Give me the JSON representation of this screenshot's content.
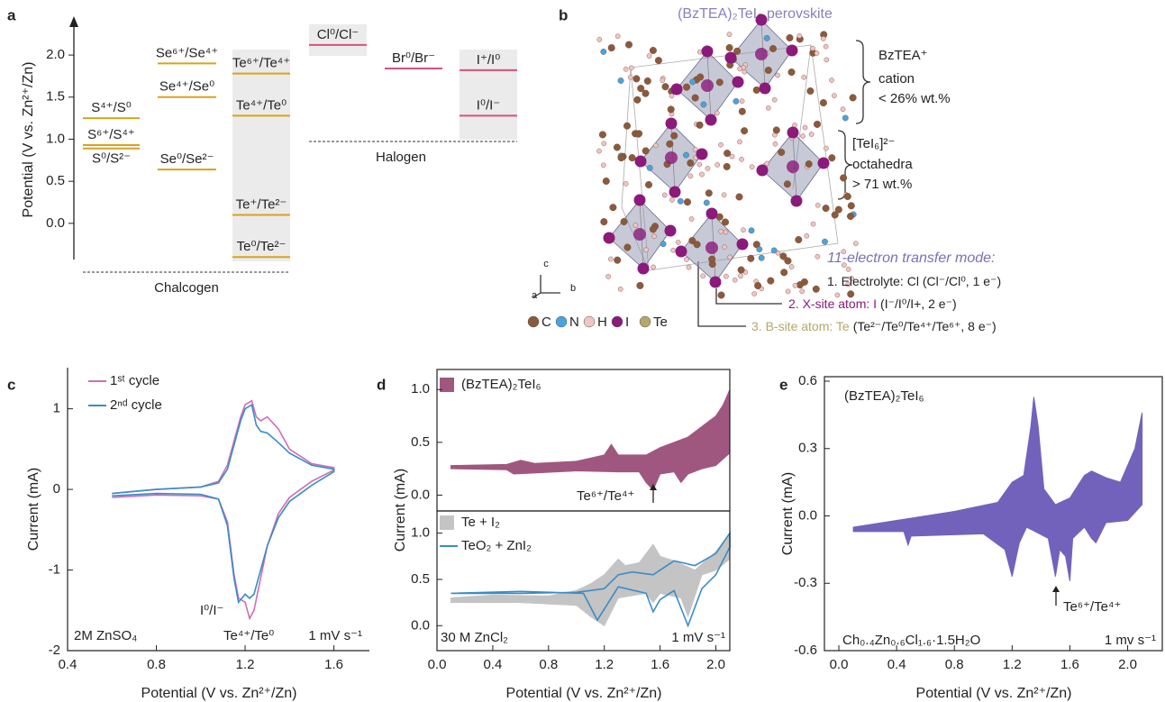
{
  "chart_data": [
    {
      "type": "levels",
      "panel_label": "a",
      "ylabel": "Potential (V vs. Zn²⁺/Zn)",
      "ylim": [
        -0.43,
        2.44
      ],
      "yticks": [
        {
          "value": 0,
          "label": "0.0"
        },
        0.5,
        {
          "value": 1,
          "label": "1.0"
        },
        1.5,
        {
          "value": 2,
          "label": "2.0"
        }
      ],
      "groups": [
        {
          "name": "Chalcogen",
          "color": "#d9a21b",
          "columns": [
            {
              "levels": [
                {
                  "label": "S⁴⁺/S⁰",
                  "value": 1.25
                },
                {
                  "label": "S⁶⁺/S⁴⁺",
                  "value": 0.93
                },
                {
                  "label": "S⁰/S²⁻",
                  "value": 0.89
                }
              ]
            },
            {
              "levels": [
                {
                  "label": "Se⁶⁺/Se⁴⁺",
                  "value": 1.9
                },
                {
                  "label": "Se⁴⁺/Se⁰",
                  "value": 1.5
                },
                {
                  "label": "Se⁰/Se²⁻",
                  "value": 0.64
                }
              ]
            },
            {
              "levels": [
                {
                  "label": "Te⁶⁺/Te⁴⁺",
                  "value": 1.78
                },
                {
                  "label": "Te⁴⁺/Te⁰",
                  "value": 1.28
                },
                {
                  "label": "Te⁺/Te²⁻",
                  "value": 0.1
                },
                {
                  "label": "Te⁰/Te²⁻",
                  "value": -0.4
                }
              ]
            }
          ]
        },
        {
          "name": "Halogen",
          "color": "#d4527f",
          "columns": [
            {
              "levels": [
                {
                  "label": "Cl⁰/Cl⁻",
                  "value": 2.12
                }
              ]
            },
            {
              "levels": [
                {
                  "label": "Br⁰/Br⁻",
                  "value": 1.84
                }
              ]
            },
            {
              "levels": [
                {
                  "label": "I⁺/I⁰",
                  "value": 1.82
                },
                {
                  "label": "I⁰/I⁻",
                  "value": 1.28
                }
              ]
            }
          ]
        }
      ]
    },
    {
      "type": "structure",
      "panel_label": "b",
      "title": "(BzTEA)₂TeI₆ perovskite",
      "annotations": [
        "BzTEA⁺",
        "cation",
        "< 26% wt.%",
        "[TeI₆]²⁻",
        "octahedra",
        "> 71 wt.%"
      ],
      "mode_title": "11-electron transfer mode:",
      "modes": [
        [
          "1. Electrolyte: Cl (Cl⁻/Cl⁰, 1 e⁻)"
        ],
        [
          "2. X-site atom: I",
          "(I⁻/I⁰/I+, 2 e⁻)"
        ],
        [
          "3. B-site atom: Te",
          "(Te²⁻/Te⁰/Te⁴⁺/Te⁶⁺, 8 e⁻)"
        ]
      ],
      "axes_labels": [
        "c",
        "a",
        "b"
      ],
      "elements": [
        {
          "name": "C",
          "color": "#8b5a3c"
        },
        {
          "name": "N",
          "color": "#4aa3df"
        },
        {
          "name": "H",
          "color": "#f2c4c4"
        },
        {
          "name": "I",
          "color": "#8b1a7a"
        },
        {
          "name": "Te",
          "color": "#b5a66a"
        }
      ]
    },
    {
      "type": "cv",
      "panel_label": "c",
      "xlabel": "Potential (V vs. Zn²⁺/Zn)",
      "ylabel": "Current (mA)",
      "xlim": [
        0.4,
        1.76
      ],
      "ylim": [
        -2,
        1.51
      ],
      "xticks": [
        0.4,
        0.8,
        1.2,
        1.6
      ],
      "yticks": [
        -2,
        -1,
        0,
        1
      ],
      "series": [
        {
          "name": "1ˢᵗ cycle",
          "color": "#cc6fb5",
          "fill": false,
          "x": [
            0.6,
            0.8,
            1.0,
            1.08,
            1.12,
            1.15,
            1.18,
            1.2,
            1.23,
            1.25,
            1.27,
            1.3,
            1.35,
            1.4,
            1.5,
            1.6,
            1.6,
            1.5,
            1.4,
            1.35,
            1.3,
            1.27,
            1.24,
            1.22,
            1.2,
            1.17,
            1.15,
            1.12,
            1.08,
            1.0,
            0.8,
            0.6
          ],
          "values": [
            -0.05,
            0.0,
            0.03,
            0.1,
            0.3,
            0.6,
            0.9,
            1.05,
            1.1,
            0.9,
            0.85,
            0.9,
            0.75,
            0.5,
            0.32,
            0.27,
            0.24,
            0.1,
            -0.1,
            -0.3,
            -0.7,
            -1.1,
            -1.5,
            -1.6,
            -1.4,
            -1.35,
            -1.05,
            -0.4,
            -0.12,
            -0.08,
            -0.07,
            -0.1
          ]
        },
        {
          "name": "2ⁿᵈ cycle",
          "color": "#3a8cc6",
          "fill": false,
          "x": [
            0.6,
            0.8,
            1.0,
            1.08,
            1.12,
            1.15,
            1.18,
            1.2,
            1.23,
            1.25,
            1.27,
            1.3,
            1.35,
            1.4,
            1.5,
            1.6,
            1.6,
            1.5,
            1.4,
            1.35,
            1.3,
            1.27,
            1.24,
            1.22,
            1.2,
            1.17,
            1.15,
            1.12,
            1.08,
            1.0,
            0.8,
            0.6
          ],
          "values": [
            -0.05,
            0.0,
            0.03,
            0.08,
            0.25,
            0.55,
            0.85,
            1.0,
            1.05,
            0.8,
            0.72,
            0.7,
            0.58,
            0.45,
            0.3,
            0.25,
            0.22,
            0.05,
            -0.15,
            -0.35,
            -0.7,
            -1.0,
            -1.3,
            -1.35,
            -1.3,
            -1.4,
            -1.1,
            -0.45,
            -0.12,
            -0.06,
            -0.05,
            -0.08
          ]
        }
      ],
      "annotations": [
        "2M ZnSO₄",
        "I⁰/I⁻",
        "Te⁴⁺/Te⁰",
        "1 mV s⁻¹"
      ]
    },
    {
      "type": "cv",
      "panel_label": "d",
      "ylabel": "Current (mA)",
      "xlim": [
        0,
        2.1
      ],
      "ylim": [
        -0.15,
        1.19
      ],
      "yticks": [
        {
          "value": 0,
          "label": "0.0"
        },
        0.5,
        {
          "value": 1,
          "label": "1.0"
        }
      ],
      "series": [
        {
          "name": "(BzTEA)₂TeI₆",
          "color": "#a0577f",
          "fill": true,
          "x": [
            0.1,
            0.5,
            0.6,
            0.7,
            1.0,
            1.2,
            1.25,
            1.3,
            1.5,
            1.6,
            1.8,
            1.9,
            2.0,
            2.05,
            2.1,
            2.1,
            2.0,
            1.9,
            1.8,
            1.75,
            1.7,
            1.6,
            1.55,
            1.5,
            1.45,
            1.3,
            1.0,
            0.55,
            0.5,
            0.1
          ],
          "values": [
            0.28,
            0.29,
            0.33,
            0.3,
            0.32,
            0.38,
            0.48,
            0.38,
            0.38,
            0.45,
            0.55,
            0.65,
            0.75,
            0.85,
            1.0,
            0.4,
            0.28,
            0.25,
            0.2,
            0.12,
            0.22,
            0.2,
            0.05,
            0.12,
            0.22,
            0.22,
            0.23,
            0.2,
            0.24,
            0.25
          ]
        }
      ],
      "annotations": [
        "Te⁶⁺/Te⁴⁺"
      ]
    },
    {
      "type": "cv",
      "xlabel": "Potential (V vs. Zn²⁺/Zn)",
      "xlim": [
        0,
        2.1
      ],
      "ylim": [
        -0.27,
        1.24
      ],
      "xticks": [
        {
          "value": 0,
          "label": "0.0"
        },
        0.4,
        0.8,
        1.2,
        1.6,
        {
          "value": 2,
          "label": "2.0"
        }
      ],
      "yticks": [
        {
          "value": 0,
          "label": "0.0"
        },
        0.5,
        {
          "value": 1,
          "label": "1.0"
        }
      ],
      "series": [
        {
          "name": "Te + I₂",
          "color": "#c4c4c4",
          "fill": true,
          "x": [
            0.1,
            0.4,
            0.8,
            1.0,
            1.1,
            1.2,
            1.3,
            1.35,
            1.45,
            1.55,
            1.6,
            1.7,
            1.85,
            2.0,
            2.1,
            2.1,
            2.0,
            1.9,
            1.8,
            1.75,
            1.6,
            1.55,
            1.5,
            1.3,
            1.2,
            1.1,
            1.0,
            0.6,
            0.1
          ],
          "values": [
            0.3,
            0.33,
            0.32,
            0.38,
            0.45,
            0.55,
            0.72,
            0.65,
            0.68,
            0.88,
            0.75,
            0.7,
            0.6,
            0.8,
            1.0,
            0.72,
            0.6,
            0.55,
            0.1,
            0.3,
            0.35,
            0.25,
            0.35,
            0.3,
            0.0,
            0.1,
            0.22,
            0.25,
            0.25
          ]
        },
        {
          "name": "TeO₂ + ZnI₂",
          "color": "#3a8cc6",
          "fill": false,
          "x": [
            0.1,
            0.6,
            1.0,
            1.1,
            1.2,
            1.3,
            1.4,
            1.55,
            1.7,
            1.85,
            2.0,
            2.1,
            2.1,
            2.0,
            1.9,
            1.8,
            1.7,
            1.6,
            1.55,
            1.5,
            1.3,
            1.15,
            1.05,
            0.6,
            0.1
          ],
          "values": [
            0.35,
            0.35,
            0.36,
            0.38,
            0.4,
            0.55,
            0.58,
            0.55,
            0.7,
            0.65,
            0.78,
            1.0,
            0.85,
            0.55,
            0.4,
            0.0,
            0.38,
            0.28,
            0.15,
            0.35,
            0.42,
            0.06,
            0.35,
            0.37,
            0.35
          ]
        }
      ],
      "annotations": [
        "30 M ZnCl₂",
        "1 mV s⁻¹"
      ]
    },
    {
      "type": "cv",
      "panel_label": "e",
      "xlabel": "Potential (V vs. Zn²⁺/Zn)",
      "ylabel": "Current (mA)",
      "xlim": [
        -0.1,
        2.24
      ],
      "ylim": [
        -0.6,
        0.62
      ],
      "xticks": [
        {
          "value": 0,
          "label": "0.0"
        },
        0.4,
        0.8,
        1.2,
        1.6,
        {
          "value": 2,
          "label": "2.0"
        }
      ],
      "yticks": [
        -0.6,
        -0.3,
        {
          "value": 0,
          "label": "0.0"
        },
        0.3,
        0.6
      ],
      "series": [
        {
          "name": "(BzTEA)₂TeI₆",
          "color": "#7262bb",
          "fill": true,
          "x": [
            0.1,
            0.4,
            0.8,
            1.1,
            1.2,
            1.28,
            1.33,
            1.35,
            1.38,
            1.42,
            1.5,
            1.6,
            1.7,
            1.75,
            1.85,
            1.95,
            2.05,
            2.1,
            2.1,
            2.0,
            1.85,
            1.78,
            1.75,
            1.7,
            1.62,
            1.6,
            1.57,
            1.53,
            1.5,
            1.45,
            1.3,
            1.25,
            1.2,
            1.15,
            1.0,
            0.5,
            0.48,
            0.45,
            0.1
          ],
          "values": [
            -0.05,
            -0.02,
            0.02,
            0.06,
            0.15,
            0.18,
            0.4,
            0.53,
            0.4,
            0.12,
            0.05,
            0.08,
            0.18,
            0.2,
            0.17,
            0.15,
            0.3,
            0.46,
            0.05,
            -0.02,
            -0.03,
            -0.12,
            -0.1,
            -0.05,
            -0.1,
            -0.29,
            -0.18,
            -0.15,
            -0.27,
            -0.1,
            -0.05,
            -0.12,
            -0.27,
            -0.15,
            -0.08,
            -0.09,
            -0.13,
            -0.07,
            -0.07
          ]
        }
      ],
      "annotations": [
        "(BzTEA)₂TeI₆",
        "Te⁶⁺/Te⁴⁺",
        "Ch₀.₄Zn₀.₆Cl₁.₆·1.5H₂O",
        "1 mv s⁻¹"
      ]
    }
  ]
}
